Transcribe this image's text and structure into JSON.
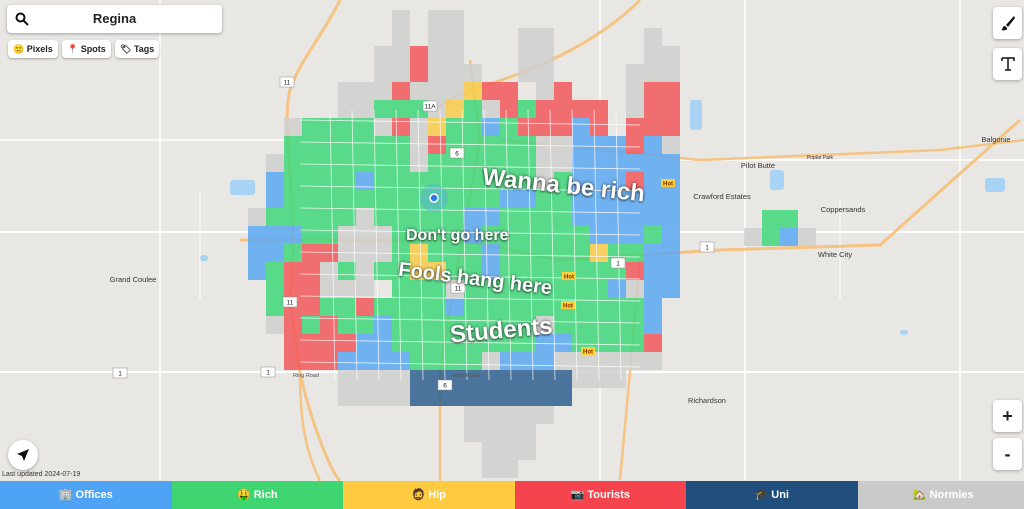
{
  "search": "Regina",
  "chips": [
    {
      "icon": "🙂",
      "label": "Pixels"
    },
    {
      "icon": "📍",
      "label": "Spots"
    },
    {
      "icon": "🏷",
      "label": "Tags"
    }
  ],
  "last_updated": "Last updated 2024-07-19",
  "tags": [
    "Wanna be rich",
    "Don't go here",
    "Fools hang here",
    "Students"
  ],
  "hot_markers": [
    "Hot",
    "Hot",
    "Hot",
    "Hot"
  ],
  "places": [
    "Pilot Butte",
    "Balgonie",
    "Crawford Estates",
    "Coppersands",
    "White City",
    "Grand Coulee",
    "Richardson",
    "Poplar Park"
  ],
  "road_shields": [
    "11",
    "11A",
    "6",
    "1",
    "1",
    "11",
    "1",
    "6",
    "11",
    "1"
  ],
  "street_labels": [
    "Ring Road",
    "Ring Road"
  ],
  "categories": [
    {
      "icon": "🏢",
      "label": "Offices"
    },
    {
      "icon": "🤑",
      "label": "Rich"
    },
    {
      "icon": "🧔",
      "label": "Hip"
    },
    {
      "icon": "📷",
      "label": "Tourists"
    },
    {
      "icon": "🎓",
      "label": "Uni"
    },
    {
      "icon": "🏡",
      "label": "Normies"
    }
  ],
  "zoom_buttons": [
    "+",
    "-"
  ]
}
